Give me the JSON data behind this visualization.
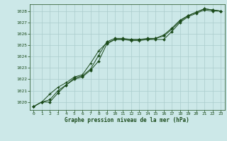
{
  "title": "Graphe pression niveau de la mer (hPa)",
  "xlabel": "Graphe pression niveau de la mer (hPa)",
  "background_color": "#cce8e8",
  "grid_color": "#aacccc",
  "line_color": "#1a4a1a",
  "marker_color": "#1a4a1a",
  "ylim": [
    1019.3,
    1028.6
  ],
  "xlim": [
    -0.5,
    23.5
  ],
  "yticks": [
    1020,
    1021,
    1022,
    1023,
    1024,
    1025,
    1026,
    1027,
    1028
  ],
  "xticks": [
    0,
    1,
    2,
    3,
    4,
    5,
    6,
    7,
    8,
    9,
    10,
    11,
    12,
    13,
    14,
    15,
    16,
    17,
    18,
    19,
    20,
    21,
    22,
    23
  ],
  "series": [
    [
      1019.6,
      1020.0,
      1020.0,
      1020.8,
      1021.5,
      1022.0,
      1022.2,
      1022.8,
      1023.6,
      1025.1,
      1025.5,
      1025.5,
      1025.5,
      1025.5,
      1025.5,
      1025.5,
      1025.5,
      1026.2,
      1027.0,
      1027.5,
      1027.8,
      1028.1,
      1028.0,
      1028.0
    ],
    [
      1019.6,
      1020.0,
      1020.7,
      1021.3,
      1021.7,
      1022.2,
      1022.4,
      1023.4,
      1024.5,
      1025.2,
      1025.5,
      1025.5,
      1025.4,
      1025.4,
      1025.5,
      1025.6,
      1025.8,
      1026.4,
      1027.1,
      1027.6,
      1027.9,
      1028.2,
      1028.1,
      1028.0
    ],
    [
      1019.6,
      1020.0,
      1020.2,
      1021.0,
      1021.5,
      1022.1,
      1022.3,
      1022.9,
      1024.1,
      1025.3,
      1025.6,
      1025.6,
      1025.5,
      1025.5,
      1025.6,
      1025.6,
      1025.9,
      1026.5,
      1027.2,
      1027.6,
      1027.9,
      1028.2,
      1028.1,
      1028.0
    ]
  ]
}
